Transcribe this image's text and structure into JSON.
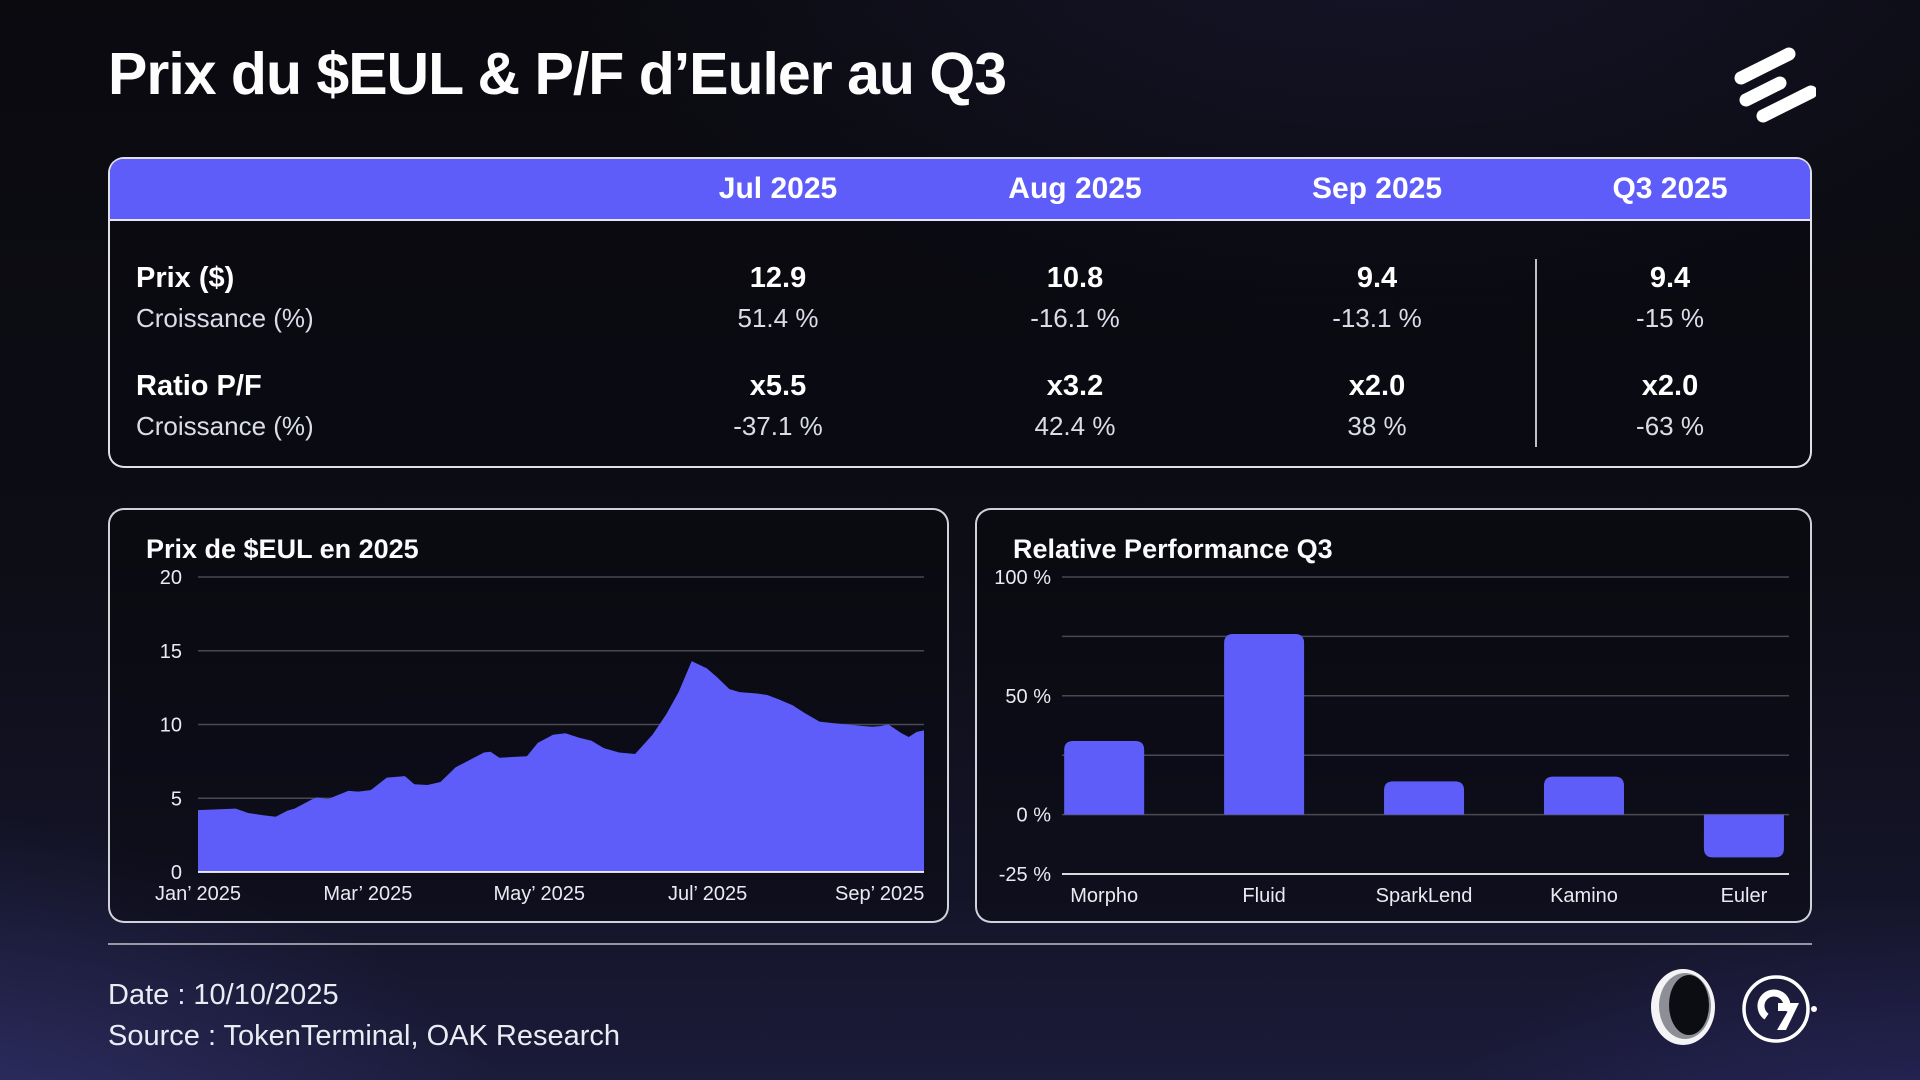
{
  "title": "Prix du $EUL & P/F d’Euler au Q3",
  "icons": {
    "header_logo": "euler-stripes-logo",
    "footer_logo_1": "oak-ring-logo",
    "footer_logo_2": "g7-circle-logo"
  },
  "colors": {
    "accent": "#5f5dfa",
    "card_border": "#eeeef6",
    "grid_line": "rgba(255,255,255,0.25)",
    "axis_line": "rgba(255,255,255,0.85)"
  },
  "table": {
    "columns": [
      "Jul 2025",
      "Aug 2025",
      "Sep 2025",
      "Q3 2025"
    ],
    "rows": [
      {
        "label": "Prix ($)",
        "values": [
          "12.9",
          "10.8",
          "9.4",
          "9.4"
        ]
      },
      {
        "label": "Croissance (%)",
        "values": [
          "51.4 %",
          "-16.1 %",
          "-13.1 %",
          "-15 %"
        ]
      },
      {
        "label": "Ratio P/F",
        "values": [
          "x5.5",
          "x3.2",
          "x2.0",
          "x2.0"
        ]
      },
      {
        "label": "Croissance (%)",
        "values": [
          "-37.1 %",
          "42.4 %",
          "38 %",
          "-63 %"
        ]
      }
    ]
  },
  "chart_data": [
    {
      "type": "area",
      "title": "Prix de $EUL en 2025",
      "ylabel": "",
      "xlabel": "",
      "ylim": [
        0,
        20
      ],
      "y_ticks": [
        0,
        5,
        10,
        15,
        20
      ],
      "x_tick_labels": [
        "Jan’ 2025",
        "Mar’ 2025",
        "May’ 2025",
        "Jul’ 2025",
        "Sep’ 2025"
      ],
      "x_tick_pos_pct": [
        0,
        23.4,
        47.0,
        70.2,
        93.9
      ],
      "fill": "#5f5dfa",
      "points": [
        [
          0,
          4.2
        ],
        [
          5.2,
          4.3
        ],
        [
          6.9,
          4.0
        ],
        [
          9.0,
          3.85
        ],
        [
          10.7,
          3.75
        ],
        [
          12.3,
          4.15
        ],
        [
          13.3,
          4.3
        ],
        [
          15.8,
          4.95
        ],
        [
          16.4,
          5.05
        ],
        [
          17.9,
          4.95
        ],
        [
          19.2,
          5.2
        ],
        [
          20.7,
          5.5
        ],
        [
          22.1,
          5.45
        ],
        [
          23.8,
          5.55
        ],
        [
          26.0,
          6.4
        ],
        [
          28.5,
          6.5
        ],
        [
          29.8,
          5.95
        ],
        [
          31.6,
          5.9
        ],
        [
          33.4,
          6.1
        ],
        [
          35.5,
          7.1
        ],
        [
          39.4,
          8.1
        ],
        [
          40.3,
          8.15
        ],
        [
          41.5,
          7.75
        ],
        [
          43.6,
          7.8
        ],
        [
          45.3,
          7.85
        ],
        [
          46.8,
          8.75
        ],
        [
          48.9,
          9.3
        ],
        [
          50.6,
          9.4
        ],
        [
          52.5,
          9.1
        ],
        [
          54.2,
          8.9
        ],
        [
          55.9,
          8.4
        ],
        [
          58.0,
          8.1
        ],
        [
          60.2,
          8.0
        ],
        [
          62.6,
          9.3
        ],
        [
          64.5,
          10.7
        ],
        [
          66.2,
          12.2
        ],
        [
          68.0,
          14.3
        ],
        [
          70.1,
          13.8
        ],
        [
          71.5,
          13.2
        ],
        [
          73.2,
          12.4
        ],
        [
          74.6,
          12.2
        ],
        [
          77.0,
          12.1
        ],
        [
          78.4,
          12.0
        ],
        [
          80.0,
          11.7
        ],
        [
          81.9,
          11.3
        ],
        [
          83.5,
          10.8
        ],
        [
          85.6,
          10.2
        ],
        [
          87.3,
          10.1
        ],
        [
          89.4,
          10.0
        ],
        [
          91.5,
          9.9
        ],
        [
          92.9,
          9.85
        ],
        [
          94.1,
          9.9
        ],
        [
          95.1,
          10.0
        ],
        [
          96.9,
          9.4
        ],
        [
          97.9,
          9.15
        ],
        [
          99.0,
          9.5
        ],
        [
          100,
          9.6
        ]
      ]
    },
    {
      "type": "bar",
      "title": "Relative Performance Q3",
      "categories": [
        "Morpho",
        "Fluid",
        "SparkLend",
        "Kamino",
        "Euler"
      ],
      "values": [
        31,
        76,
        14,
        16,
        -18
      ],
      "ylim": [
        -25,
        100
      ],
      "gridlines": [
        100,
        75,
        50,
        25,
        0
      ],
      "y_ticks_labeled": [
        {
          "value": 100,
          "label": "100 %"
        },
        {
          "value": 50,
          "label": "50 %"
        },
        {
          "value": 0,
          "label": "0 %"
        },
        {
          "value": -25,
          "label": "-25 %"
        }
      ],
      "fill": "#5f5dfa"
    }
  ],
  "footer": {
    "date": "Date : 10/10/2025",
    "source": "Source : TokenTerminal, OAK Research"
  }
}
